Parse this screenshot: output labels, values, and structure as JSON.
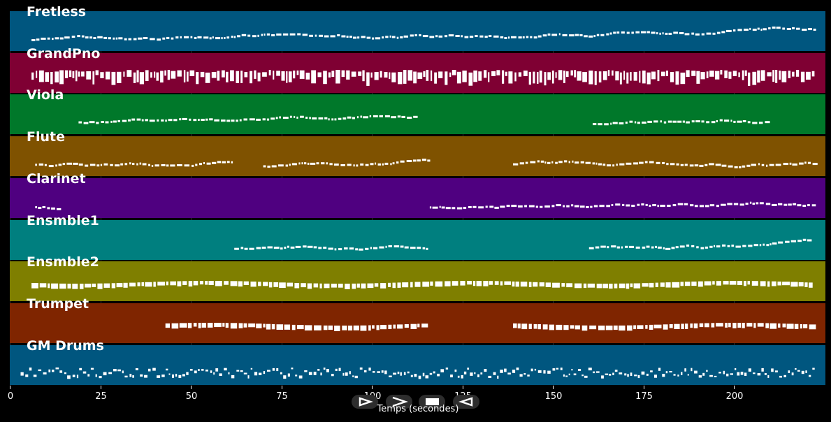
{
  "tracks": [
    {
      "name": "Fretless",
      "color": "#00567f",
      "density": "melody",
      "segments": [
        [
          6,
          222
        ]
      ]
    },
    {
      "name": "GrandPno",
      "color": "#7f0033",
      "density": "chords",
      "segments": [
        [
          6,
          222
        ]
      ]
    },
    {
      "name": "Viola",
      "color": "#00782a",
      "density": "melody",
      "segments": [
        [
          19,
          112
        ],
        [
          161,
          209
        ]
      ]
    },
    {
      "name": "Flute",
      "color": "#7f5200",
      "density": "melody",
      "segments": [
        [
          7,
          62
        ],
        [
          70,
          116
        ],
        [
          139,
          222
        ]
      ]
    },
    {
      "name": "Clarinet",
      "color": "#4f0080",
      "density": "melody",
      "segments": [
        [
          7,
          13
        ],
        [
          116,
          222
        ]
      ]
    },
    {
      "name": "Ensmble1",
      "color": "#007f7f",
      "density": "melody",
      "segments": [
        [
          62,
          115
        ],
        [
          160,
          222
        ]
      ]
    },
    {
      "name": "Ensmble2",
      "color": "#7f7f00",
      "density": "sustain",
      "segments": [
        [
          6,
          222
        ]
      ]
    },
    {
      "name": "Trumpet",
      "color": "#7f2500",
      "density": "sustain",
      "segments": [
        [
          43,
          115
        ],
        [
          139,
          222
        ]
      ]
    },
    {
      "name": "GM Drums",
      "color": "#00567f",
      "density": "drums",
      "segments": [
        [
          3,
          222
        ]
      ]
    }
  ],
  "x_axis": {
    "title": "Temps (secondes)",
    "min": 0,
    "max": 225,
    "ticks": [
      "0",
      "25",
      "50",
      "75",
      "100",
      "125",
      "150",
      "175",
      "200"
    ],
    "tick_values": [
      0,
      25,
      50,
      75,
      100,
      125,
      150,
      175,
      200
    ]
  },
  "controls": [
    {
      "name": "play-icon",
      "glyph": "play"
    },
    {
      "name": "forward-icon",
      "glyph": "forward"
    },
    {
      "name": "stop-icon",
      "glyph": "stop"
    },
    {
      "name": "rewind-icon",
      "glyph": "rewind"
    }
  ]
}
